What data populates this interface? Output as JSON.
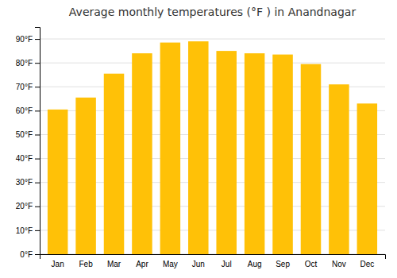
{
  "chart_data": {
    "type": "bar",
    "title": "Average monthly temperatures (°F ) in Anandnagar",
    "categories": [
      "Jan",
      "Feb",
      "Mar",
      "Apr",
      "May",
      "Jun",
      "Jul",
      "Aug",
      "Sep",
      "Oct",
      "Nov",
      "Dec"
    ],
    "values": [
      60.5,
      65.5,
      75.5,
      84.0,
      88.5,
      89.0,
      85.0,
      84.0,
      83.5,
      79.5,
      71.0,
      63.0
    ],
    "color": "#FFC107",
    "ylim": [
      0,
      95
    ],
    "yticks": [
      {
        "value": 0,
        "label": "0°F"
      },
      {
        "value": 10,
        "label": "10°F"
      },
      {
        "value": 20,
        "label": "20°F"
      },
      {
        "value": 30,
        "label": "30°F"
      },
      {
        "value": 40,
        "label": "40°F"
      },
      {
        "value": 50,
        "label": "50°F"
      },
      {
        "value": 60,
        "label": "60°F"
      },
      {
        "value": 70,
        "label": "70°F"
      },
      {
        "value": 80,
        "label": "80°F"
      },
      {
        "value": 90,
        "label": "90°F"
      }
    ],
    "grid": true
  }
}
